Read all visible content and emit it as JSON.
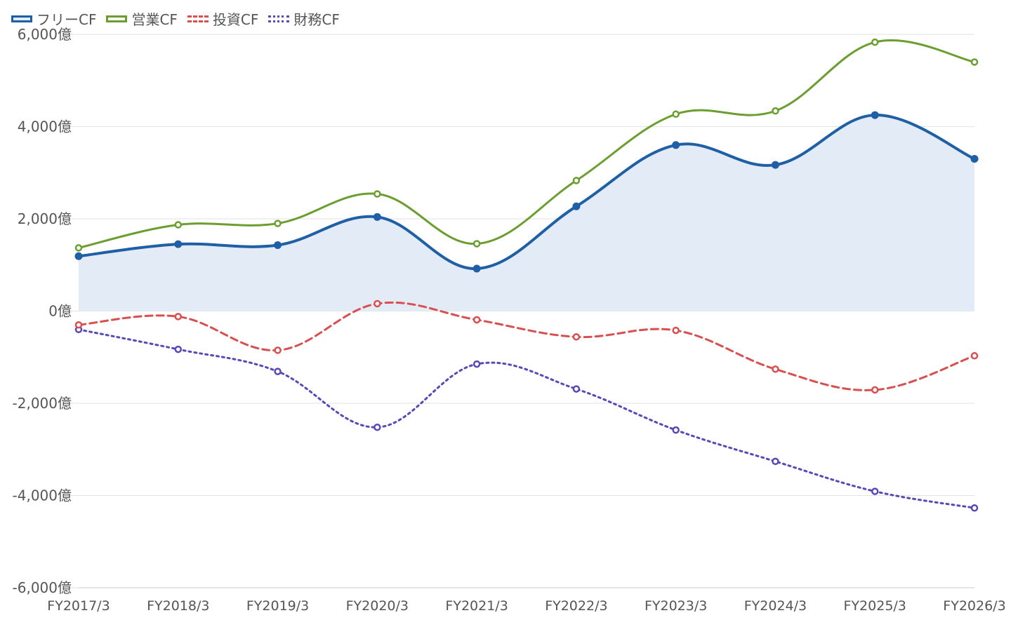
{
  "chart_data": {
    "type": "line",
    "categories": [
      "FY2017/3",
      "FY2018/3",
      "FY2019/3",
      "FY2020/3",
      "FY2021/3",
      "FY2022/3",
      "FY2023/3",
      "FY2024/3",
      "FY2025/3",
      "FY2026/3"
    ],
    "y_ticks": [
      "6,000億",
      "4,000億",
      "2,000億",
      "0億",
      "-2,000億",
      "-4,000億",
      "-6,000億"
    ],
    "ylim": [
      -6000,
      6000
    ],
    "grid": true,
    "legend_position": "top-left",
    "series": [
      {
        "name": "フリーCF",
        "color": "#1f5fa6",
        "style": "solid",
        "fill": "#e3ecf6",
        "values": [
          1190,
          1450,
          1430,
          2040,
          920,
          2270,
          3600,
          3170,
          4250,
          3300
        ]
      },
      {
        "name": "営業CF",
        "color": "#6a9e2f",
        "style": "solid",
        "values": [
          1370,
          1870,
          1900,
          2540,
          1460,
          2830,
          4270,
          4340,
          5830,
          5400
        ]
      },
      {
        "name": "投資CF",
        "color": "#d94f4f",
        "style": "dashed",
        "values": [
          -300,
          -120,
          -850,
          160,
          -190,
          -560,
          -420,
          -1260,
          -1710,
          -970
        ]
      },
      {
        "name": "財務CF",
        "color": "#5b47b8",
        "style": "dotted",
        "values": [
          -400,
          -830,
          -1310,
          -2520,
          -1150,
          -1690,
          -2580,
          -3260,
          -3910,
          -4270
        ]
      }
    ]
  }
}
